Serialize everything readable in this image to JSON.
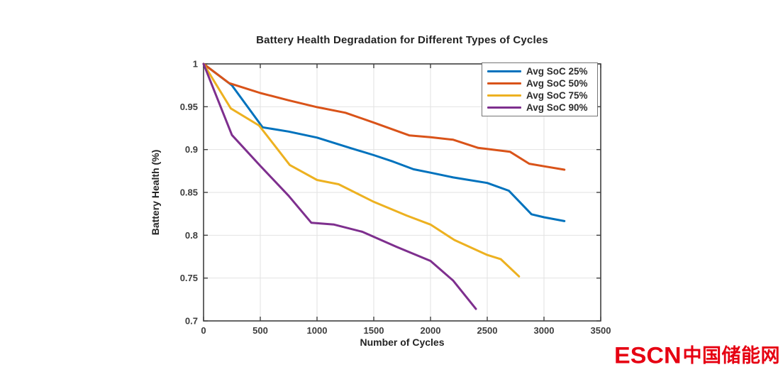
{
  "chart_data": {
    "type": "line",
    "title": "Battery Health Degradation for Different Types of Cycles",
    "xlabel": "Number of Cycles",
    "ylabel": "Battery Health (%)",
    "xlim": [
      0,
      3500
    ],
    "ylim": [
      0.7,
      1.0
    ],
    "x_ticks": [
      0,
      500,
      1000,
      1500,
      2000,
      2500,
      3000,
      3500
    ],
    "x_tick_labels": [
      "0",
      "500",
      "1000",
      "1500",
      "2000",
      "2500",
      "3000",
      "3500"
    ],
    "y_ticks": [
      0.7,
      0.75,
      0.8,
      0.85,
      0.9,
      0.95,
      1
    ],
    "y_tick_labels": [
      "0.7",
      "0.75",
      "0.8",
      "0.85",
      "0.9",
      "0.95",
      "1"
    ],
    "grid": true,
    "legend_position": "top-right",
    "series": [
      {
        "name": "Avg SoC 25%",
        "color": "#0072BD",
        "x": [
          0,
          250,
          520,
          750,
          1000,
          1290,
          1500,
          1670,
          1850,
          2000,
          2200,
          2500,
          2690,
          2890,
          3000,
          3180
        ],
        "y": [
          1.0,
          0.975,
          0.926,
          0.921,
          0.914,
          0.902,
          0.8935,
          0.886,
          0.877,
          0.873,
          0.8675,
          0.861,
          0.852,
          0.8245,
          0.821,
          0.8165
        ]
      },
      {
        "name": "Avg SoC 50%",
        "color": "#D95319",
        "x": [
          0,
          225,
          500,
          750,
          1000,
          1250,
          1500,
          1815,
          2000,
          2200,
          2420,
          2700,
          2870,
          3000,
          3180
        ],
        "y": [
          1.0,
          0.9775,
          0.966,
          0.9575,
          0.9495,
          0.943,
          0.9315,
          0.9165,
          0.9145,
          0.9115,
          0.902,
          0.8975,
          0.8835,
          0.8805,
          0.8765
        ]
      },
      {
        "name": "Avg SoC 75%",
        "color": "#EDB120",
        "x": [
          0,
          240,
          490,
          760,
          1000,
          1190,
          1500,
          1790,
          2000,
          2210,
          2500,
          2620,
          2780
        ],
        "y": [
          1.0,
          0.948,
          0.928,
          0.882,
          0.8645,
          0.8595,
          0.839,
          0.823,
          0.8125,
          0.7945,
          0.777,
          0.772,
          0.752
        ]
      },
      {
        "name": "Avg SoC 90%",
        "color": "#7E2F8E",
        "x": [
          0,
          250,
          500,
          750,
          950,
          1150,
          1400,
          1700,
          2000,
          2200,
          2400
        ],
        "y": [
          1.0,
          0.917,
          0.881,
          0.846,
          0.8145,
          0.8125,
          0.804,
          0.7865,
          0.77,
          0.747,
          0.714
        ]
      }
    ]
  },
  "colors": {
    "axis": "#3F3F3F",
    "grid": "#E2E2E2",
    "tick_label": "#3D3D3D",
    "title": "#232323"
  },
  "watermark": {
    "latin": "ESCN",
    "chinese": "中国储能网",
    "color": "#E60012"
  }
}
